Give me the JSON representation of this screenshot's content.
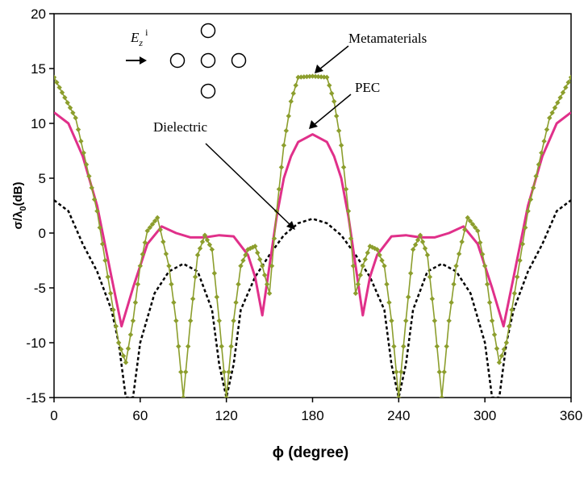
{
  "chart_data": {
    "type": "line",
    "title": "",
    "xlabel": "ϕ (degree)",
    "ylabel": "σ/λ0(dB)",
    "ylabel_main": "σ/λ",
    "ylabel_sub": "0",
    "ylabel_tail": "(dB)",
    "xlim": [
      0,
      360
    ],
    "ylim": [
      -15,
      20
    ],
    "xticks": [
      0,
      60,
      120,
      180,
      240,
      300,
      360
    ],
    "yticks": [
      -15,
      -10,
      -5,
      0,
      5,
      10,
      15,
      20
    ],
    "grid": false,
    "legend": "none",
    "series": [
      {
        "name": "Metamaterials",
        "style": "line-with-diamond-markers",
        "color": "#8C9E2D",
        "x": [
          0,
          15,
          30,
          45,
          50,
          55,
          60,
          65,
          72,
          80,
          85,
          90,
          95,
          100,
          105,
          110,
          115,
          120,
          125,
          130,
          135,
          140,
          145,
          150,
          155,
          160,
          165,
          170,
          180,
          190,
          195,
          200,
          205,
          210,
          215,
          220,
          225,
          230,
          235,
          240,
          245,
          250,
          255,
          260,
          265,
          270,
          275,
          280,
          288,
          295,
          300,
          305,
          310,
          315,
          330,
          345,
          360
        ],
        "y": [
          14.2,
          10.5,
          2.0,
          -10.0,
          -11.8,
          -8.0,
          -3.0,
          0.2,
          1.4,
          -3.0,
          -8.0,
          -15,
          -8.0,
          -2.0,
          -0.2,
          -1.5,
          -8.0,
          -15,
          -8.0,
          -3.0,
          -1.5,
          -1.2,
          -3.0,
          -5.5,
          2.0,
          8.0,
          12.0,
          14.2,
          14.3,
          14.2,
          12.0,
          8.0,
          2.0,
          -5.5,
          -3.0,
          -1.2,
          -1.5,
          -3.0,
          -8.0,
          -15,
          -8.0,
          -1.5,
          -0.2,
          -2.0,
          -8.0,
          -15,
          -8.0,
          -3.0,
          1.4,
          0.2,
          -3.0,
          -8.0,
          -11.8,
          -10.0,
          2.0,
          10.5,
          14.2
        ]
      },
      {
        "name": "PEC",
        "style": "solid",
        "color": "#E0308A",
        "x": [
          0,
          10,
          20,
          30,
          40,
          47,
          55,
          65,
          75,
          85,
          95,
          105,
          115,
          125,
          135,
          140,
          145,
          150,
          155,
          160,
          165,
          170,
          180,
          190,
          195,
          200,
          205,
          210,
          215,
          220,
          225,
          235,
          245,
          255,
          265,
          275,
          285,
          295,
          305,
          313,
          320,
          330,
          340,
          350,
          360
        ],
        "y": [
          11.0,
          10.0,
          7.0,
          2.5,
          -4.0,
          -8.5,
          -5.0,
          -1.0,
          0.6,
          0.0,
          -0.4,
          -0.4,
          -0.2,
          -0.3,
          -2.0,
          -4.0,
          -7.5,
          -3.0,
          1.5,
          5.0,
          7.0,
          8.3,
          9.0,
          8.3,
          7.0,
          5.0,
          1.5,
          -3.0,
          -7.5,
          -4.0,
          -2.0,
          -0.3,
          -0.2,
          -0.4,
          -0.4,
          0.0,
          0.6,
          -1.0,
          -5.0,
          -8.5,
          -4.0,
          2.5,
          7.0,
          10.0,
          11.0
        ]
      },
      {
        "name": "Dielectric",
        "style": "dashed",
        "color": "#000000",
        "x": [
          0,
          10,
          20,
          30,
          40,
          45,
          50,
          55,
          60,
          70,
          80,
          90,
          100,
          110,
          115,
          120,
          125,
          130,
          140,
          150,
          160,
          170,
          180,
          190,
          200,
          210,
          220,
          230,
          235,
          240,
          245,
          250,
          260,
          270,
          280,
          290,
          300,
          305,
          310,
          315,
          320,
          330,
          340,
          350,
          360
        ],
        "y": [
          3.0,
          2.0,
          -1.0,
          -3.5,
          -7.0,
          -10.0,
          -15,
          -15,
          -10.0,
          -5.5,
          -3.5,
          -2.8,
          -3.5,
          -7.0,
          -12.0,
          -15,
          -12.0,
          -7.0,
          -4.0,
          -2.0,
          -0.2,
          0.9,
          1.3,
          0.9,
          -0.2,
          -2.0,
          -4.0,
          -7.0,
          -12.0,
          -15,
          -12.0,
          -7.0,
          -3.5,
          -2.8,
          -3.5,
          -5.5,
          -10.0,
          -15,
          -15,
          -10.0,
          -7.0,
          -3.5,
          -1.0,
          2.0,
          3.0
        ]
      }
    ],
    "annotations": [
      {
        "text": "Metamaterials",
        "target": [
          180,
          14.3
        ]
      },
      {
        "text": "PEC",
        "target": [
          180,
          9.0
        ]
      },
      {
        "text": "Dielectric",
        "target": [
          175,
          1.3
        ]
      }
    ],
    "inset": {
      "label_main": "E",
      "label_sub": "z",
      "label_sup": "i",
      "cylinders": 5
    }
  }
}
